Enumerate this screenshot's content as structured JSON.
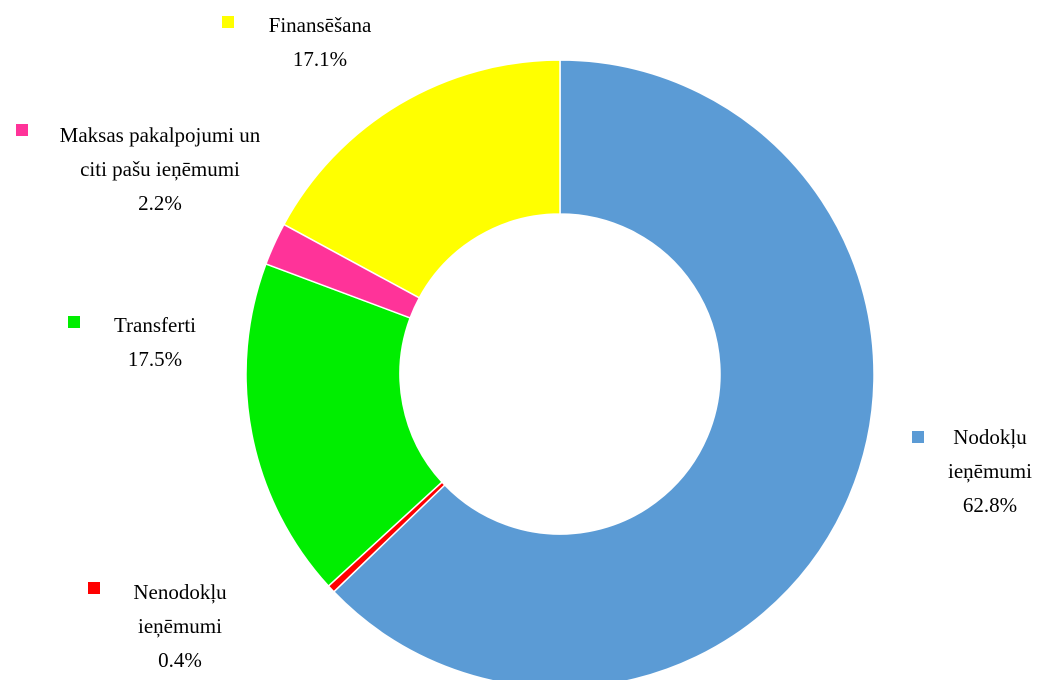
{
  "chart_data": {
    "type": "donut",
    "categories": [
      "Nodokļu ieņēmumi",
      "Nenodokļu ieņēmumi",
      "Transferti",
      "Maksas pakalpojumi un citi pašu ieņēmumi",
      "Finansēšana"
    ],
    "values": [
      62.8,
      0.4,
      17.5,
      2.2,
      17.1
    ],
    "value_labels": [
      "62.8%",
      "0.4%",
      "17.5%",
      "2.2%",
      "17.1%"
    ],
    "colors": [
      "#5b9bd5",
      "#ff0000",
      "#00ee00",
      "#ff3399",
      "#ffff00"
    ]
  }
}
